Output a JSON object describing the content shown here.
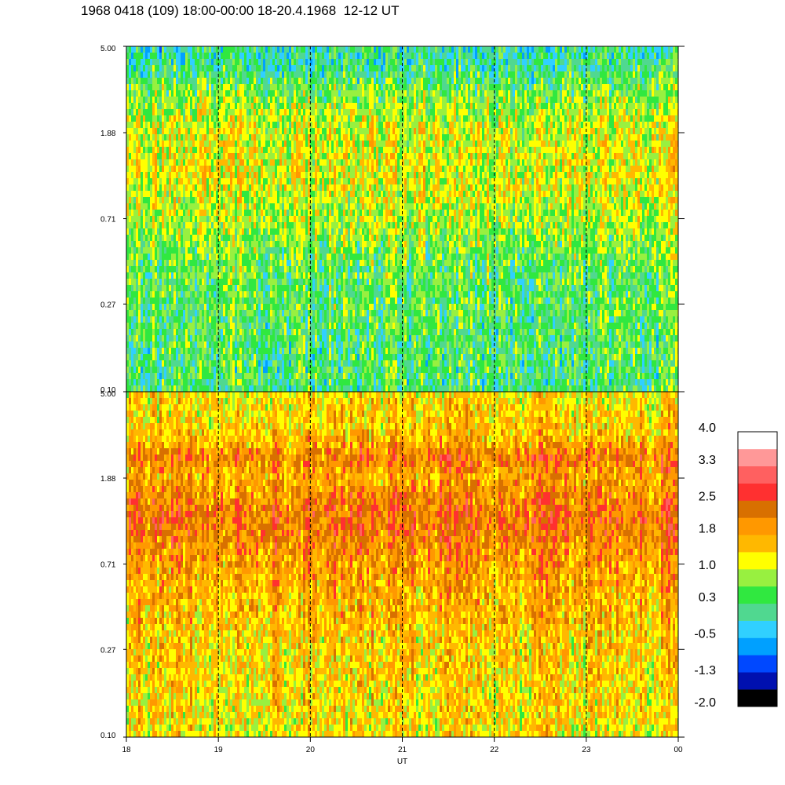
{
  "title": "1968 0418 (109) 18:00-00:00 18-20.4.1968  12-12 UT",
  "chart_data": {
    "type": "heatmap",
    "panels": [
      {
        "y_ticks": [
          "5.00",
          "1.88",
          "0.71",
          "0.27",
          "0.10"
        ],
        "y_values": [
          5.0,
          1.88,
          0.71,
          0.27,
          0.1
        ],
        "y_scale": "log",
        "ylim": [
          0.1,
          5.0
        ],
        "level_profile": [
          {
            "y": 5.0,
            "level": 0.0
          },
          {
            "y": 3.8,
            "level": 0.2
          },
          {
            "y": 2.6,
            "level": 0.8
          },
          {
            "y": 1.9,
            "level": 1.1
          },
          {
            "y": 1.2,
            "level": 1.2
          },
          {
            "y": 0.71,
            "level": 0.9
          },
          {
            "y": 0.4,
            "level": 0.5
          },
          {
            "y": 0.1,
            "level": 0.3
          }
        ]
      },
      {
        "y_ticks": [
          "5.00",
          "1.88",
          "0.71",
          "0.27",
          "0.10"
        ],
        "y_values": [
          5.0,
          1.88,
          0.71,
          0.27,
          0.1
        ],
        "y_scale": "log",
        "ylim": [
          0.1,
          5.0
        ],
        "level_profile": [
          {
            "y": 5.0,
            "level": 1.3
          },
          {
            "y": 3.0,
            "level": 1.6
          },
          {
            "y": 2.4,
            "level": 2.2
          },
          {
            "y": 1.9,
            "level": 1.8
          },
          {
            "y": 1.2,
            "level": 2.3
          },
          {
            "y": 0.71,
            "level": 1.9
          },
          {
            "y": 0.3,
            "level": 1.5
          },
          {
            "y": 0.1,
            "level": 1.3
          }
        ]
      }
    ],
    "x_ticks": [
      "18",
      "19",
      "20",
      "21",
      "22",
      "23",
      "00"
    ],
    "x_values": [
      18,
      19,
      20,
      21,
      22,
      23,
      24
    ],
    "xlim": [
      18,
      24
    ],
    "xlabel": "UT",
    "dashed_vlines": [
      19,
      20,
      21,
      22,
      23
    ],
    "colorbar": {
      "tick_labels": [
        "4.0",
        "3.3",
        "2.5",
        "1.8",
        "1.0",
        "0.3",
        "-0.5",
        "-1.3",
        "-2.0"
      ],
      "tick_values": [
        4.0,
        3.3,
        2.5,
        1.8,
        1.0,
        0.3,
        -0.5,
        -1.3,
        -2.0
      ],
      "range": [
        -2.0,
        4.0
      ],
      "colors": [
        "#000000",
        "#0010b0",
        "#0048ff",
        "#00a0ff",
        "#30d0ff",
        "#50d890",
        "#30e840",
        "#98f040",
        "#ffff00",
        "#ffb800",
        "#ff9800",
        "#d87000",
        "#ff3030",
        "#ff6060",
        "#ff9898",
        "#ffffff"
      ]
    }
  }
}
